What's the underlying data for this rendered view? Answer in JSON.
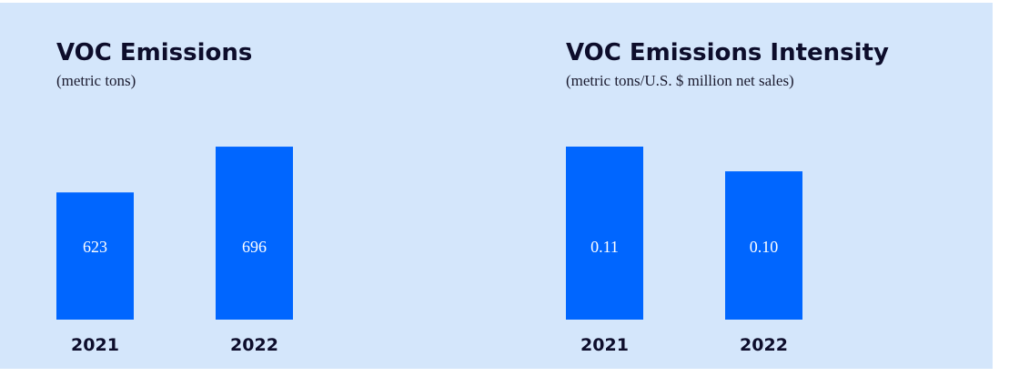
{
  "chart_data": [
    {
      "type": "bar",
      "title": "VOC Emissions",
      "subtitle": "(metric tons)",
      "categories": [
        "2021",
        "2022"
      ],
      "values": [
        623,
        696
      ],
      "color": "#0066ff",
      "ylim": [
        420,
        700
      ]
    },
    {
      "type": "bar",
      "title": "VOC Emissions Intensity",
      "subtitle": "(metric tons/U.S. $ million net sales)",
      "categories": [
        "2021",
        "2022"
      ],
      "values": [
        0.11,
        0.1
      ],
      "value_labels": [
        "0.11",
        "0.10"
      ],
      "color": "#0066ff",
      "ylim": [
        0.04,
        0.11
      ]
    }
  ]
}
